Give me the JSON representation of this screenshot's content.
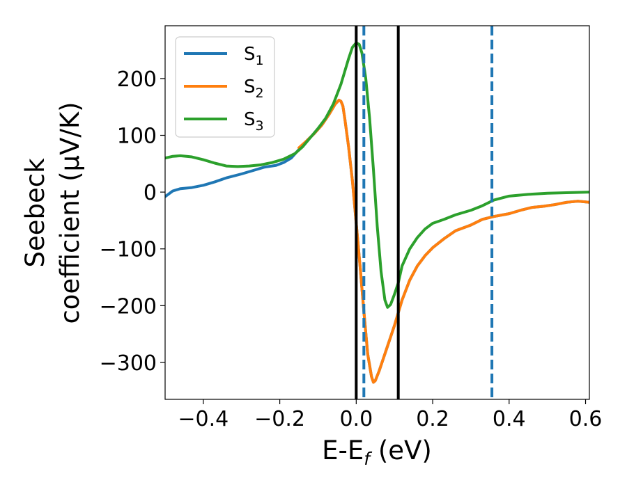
{
  "chart_data": {
    "type": "line",
    "title": "",
    "xlabel": "E-E",
    "xlabel_sub": "f",
    "xlabel_suffix": " (eV)",
    "ylabel_line1": "Seebeck",
    "ylabel_line2": "coefficient  (μV/K)",
    "xlim": [
      -0.5,
      0.61
    ],
    "ylim": [
      -365,
      293
    ],
    "xticks": [
      -0.4,
      -0.2,
      0.0,
      0.2,
      0.4,
      0.6
    ],
    "xtick_labels": [
      "−0.4",
      "−0.2",
      "0.0",
      "0.2",
      "0.4",
      "0.6"
    ],
    "yticks": [
      -300,
      -200,
      -100,
      0,
      100,
      200
    ],
    "ytick_labels": [
      "−300",
      "−200",
      "−100",
      "0",
      "100",
      "200"
    ],
    "grid": false,
    "legend_position": "top-left",
    "vlines": [
      {
        "x": 0.0,
        "style": "solid",
        "color": "#000000"
      },
      {
        "x": 0.11,
        "style": "solid",
        "color": "#000000"
      },
      {
        "x": 0.02,
        "style": "dashed",
        "color": "#1f77b4"
      },
      {
        "x": 0.355,
        "style": "dashed",
        "color": "#1f77b4"
      }
    ],
    "series": [
      {
        "name": "S",
        "sub": "1",
        "color": "#1f77b4",
        "points": [
          [
            -0.5,
            -8
          ],
          [
            -0.48,
            2
          ],
          [
            -0.46,
            6
          ],
          [
            -0.43,
            8
          ],
          [
            -0.4,
            12
          ],
          [
            -0.37,
            18
          ],
          [
            -0.34,
            25
          ],
          [
            -0.3,
            32
          ],
          [
            -0.27,
            38
          ],
          [
            -0.24,
            44
          ],
          [
            -0.21,
            47
          ],
          [
            -0.19,
            52
          ],
          [
            -0.17,
            60
          ],
          [
            -0.15,
            75
          ],
          [
            -0.13,
            90
          ],
          [
            -0.11,
            103
          ],
          [
            -0.09,
            118
          ],
          [
            -0.07,
            138
          ],
          [
            -0.055,
            155
          ],
          [
            -0.045,
            162
          ],
          [
            -0.04,
            160
          ],
          [
            -0.035,
            152
          ],
          [
            -0.03,
            130
          ],
          [
            -0.02,
            80
          ],
          [
            -0.01,
            20
          ],
          [
            0.0,
            -55
          ],
          [
            0.01,
            -130
          ],
          [
            0.02,
            -210
          ],
          [
            0.03,
            -285
          ],
          [
            0.04,
            -325
          ],
          [
            0.045,
            -335
          ],
          [
            0.05,
            -332
          ],
          [
            0.06,
            -315
          ],
          [
            0.07,
            -295
          ],
          [
            0.08,
            -275
          ],
          [
            0.09,
            -255
          ],
          [
            0.1,
            -235
          ],
          [
            0.12,
            -190
          ],
          [
            0.14,
            -155
          ],
          [
            0.16,
            -130
          ],
          [
            0.18,
            -112
          ],
          [
            0.2,
            -98
          ],
          [
            0.23,
            -82
          ],
          [
            0.26,
            -68
          ],
          [
            0.3,
            -58
          ],
          [
            0.33,
            -48
          ],
          [
            0.36,
            -43
          ],
          [
            0.4,
            -38
          ],
          [
            0.43,
            -32
          ],
          [
            0.46,
            -27
          ],
          [
            0.49,
            -25
          ],
          [
            0.52,
            -22
          ],
          [
            0.55,
            -18
          ],
          [
            0.58,
            -16
          ],
          [
            0.61,
            -18
          ]
        ]
      },
      {
        "name": "S",
        "sub": "2",
        "color": "#ff7f0e",
        "points": [
          [
            -0.15,
            78
          ],
          [
            -0.13,
            90
          ],
          [
            -0.11,
            103
          ],
          [
            -0.09,
            118
          ],
          [
            -0.07,
            138
          ],
          [
            -0.055,
            155
          ],
          [
            -0.045,
            162
          ],
          [
            -0.04,
            160
          ],
          [
            -0.035,
            152
          ],
          [
            -0.03,
            130
          ],
          [
            -0.02,
            80
          ],
          [
            -0.01,
            20
          ],
          [
            0.0,
            -55
          ],
          [
            0.01,
            -130
          ],
          [
            0.02,
            -210
          ],
          [
            0.03,
            -285
          ],
          [
            0.04,
            -325
          ],
          [
            0.045,
            -335
          ],
          [
            0.05,
            -332
          ],
          [
            0.06,
            -315
          ],
          [
            0.07,
            -295
          ],
          [
            0.08,
            -275
          ],
          [
            0.09,
            -255
          ],
          [
            0.1,
            -235
          ],
          [
            0.12,
            -190
          ],
          [
            0.14,
            -155
          ],
          [
            0.16,
            -130
          ],
          [
            0.18,
            -112
          ],
          [
            0.2,
            -98
          ],
          [
            0.23,
            -82
          ],
          [
            0.26,
            -68
          ],
          [
            0.3,
            -58
          ],
          [
            0.33,
            -48
          ],
          [
            0.36,
            -43
          ],
          [
            0.4,
            -38
          ],
          [
            0.43,
            -32
          ],
          [
            0.46,
            -27
          ],
          [
            0.49,
            -25
          ],
          [
            0.52,
            -22
          ],
          [
            0.55,
            -18
          ],
          [
            0.58,
            -16
          ],
          [
            0.61,
            -18
          ]
        ]
      },
      {
        "name": "S",
        "sub": "3",
        "color": "#2ca02c",
        "points": [
          [
            -0.5,
            60
          ],
          [
            -0.48,
            63
          ],
          [
            -0.46,
            64
          ],
          [
            -0.43,
            62
          ],
          [
            -0.4,
            57
          ],
          [
            -0.37,
            51
          ],
          [
            -0.34,
            46
          ],
          [
            -0.31,
            45
          ],
          [
            -0.28,
            46
          ],
          [
            -0.25,
            48
          ],
          [
            -0.22,
            52
          ],
          [
            -0.19,
            58
          ],
          [
            -0.16,
            68
          ],
          [
            -0.14,
            80
          ],
          [
            -0.12,
            96
          ],
          [
            -0.1,
            112
          ],
          [
            -0.08,
            130
          ],
          [
            -0.06,
            155
          ],
          [
            -0.04,
            190
          ],
          [
            -0.02,
            235
          ],
          [
            -0.01,
            255
          ],
          [
            0.0,
            263
          ],
          [
            0.008,
            260
          ],
          [
            0.015,
            245
          ],
          [
            0.025,
            200
          ],
          [
            0.035,
            130
          ],
          [
            0.045,
            40
          ],
          [
            0.055,
            -60
          ],
          [
            0.065,
            -140
          ],
          [
            0.075,
            -190
          ],
          [
            0.082,
            -203
          ],
          [
            0.09,
            -198
          ],
          [
            0.1,
            -180
          ],
          [
            0.11,
            -160
          ],
          [
            0.12,
            -130
          ],
          [
            0.14,
            -100
          ],
          [
            0.16,
            -80
          ],
          [
            0.18,
            -65
          ],
          [
            0.2,
            -55
          ],
          [
            0.23,
            -48
          ],
          [
            0.26,
            -40
          ],
          [
            0.3,
            -32
          ],
          [
            0.33,
            -24
          ],
          [
            0.36,
            -14
          ],
          [
            0.4,
            -7
          ],
          [
            0.45,
            -4
          ],
          [
            0.5,
            -2
          ],
          [
            0.55,
            -1
          ],
          [
            0.61,
            0
          ]
        ]
      }
    ]
  }
}
